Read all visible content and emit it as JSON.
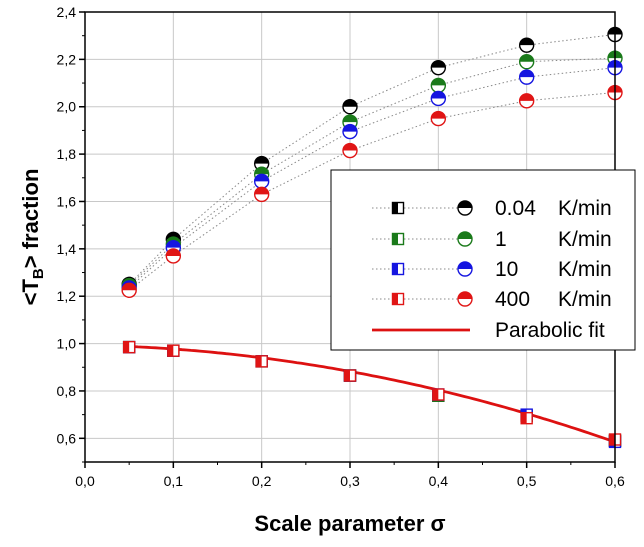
{
  "chart_data": {
    "type": "scatter",
    "xlabel": "Scale parameter σ",
    "ylabel_main": "<T",
    "ylabel_sub": "B",
    "ylabel_rest": "> fraction",
    "xlim": [
      0.0,
      0.6
    ],
    "ylim": [
      0.5,
      2.4
    ],
    "x_ticks": [
      0.0,
      0.1,
      0.2,
      0.3,
      0.4,
      0.5,
      0.6
    ],
    "x_tick_labels": [
      "0,0",
      "0,1",
      "0,2",
      "0,3",
      "0,4",
      "0,5",
      "0,6"
    ],
    "y_ticks": [
      0.6,
      0.8,
      1.0,
      1.2,
      1.4,
      1.6,
      1.8,
      2.0,
      2.2,
      2.4
    ],
    "y_tick_labels": [
      "0,6",
      "0,8",
      "1,0",
      "1,2",
      "1,4",
      "1,6",
      "1,8",
      "2,0",
      "2,2",
      "2,4"
    ],
    "grid": true,
    "legend_position": "center-right",
    "x": [
      0.05,
      0.1,
      0.2,
      0.3,
      0.4,
      0.5,
      0.6
    ],
    "series": [
      {
        "name": "0.04",
        "unit": "K/min",
        "color": "#000000",
        "squares": [
          0.985,
          0.97,
          0.925,
          0.865,
          0.78,
          0.695,
          0.59
        ],
        "circles": [
          1.25,
          1.44,
          1.76,
          2.0,
          2.165,
          2.26,
          2.305
        ]
      },
      {
        "name": "1",
        "unit": "K/min",
        "color": "#1a7a1a",
        "squares": [
          0.985,
          0.97,
          0.925,
          0.865,
          0.78,
          0.695,
          0.59
        ],
        "circles": [
          1.245,
          1.42,
          1.715,
          1.935,
          2.09,
          2.19,
          2.205
        ]
      },
      {
        "name": "10",
        "unit": "K/min",
        "color": "#1515e0",
        "squares": [
          0.985,
          0.97,
          0.925,
          0.865,
          0.785,
          0.7,
          0.585
        ],
        "circles": [
          1.235,
          1.405,
          1.685,
          1.895,
          2.035,
          2.125,
          2.165
        ]
      },
      {
        "name": "400",
        "unit": "K/min",
        "color": "#e01515",
        "squares": [
          0.985,
          0.97,
          0.925,
          0.865,
          0.785,
          0.685,
          0.595
        ],
        "circles": [
          1.225,
          1.37,
          1.63,
          1.815,
          1.95,
          2.025,
          2.06
        ]
      }
    ],
    "fit": {
      "name": "Parabolic fit",
      "color": "#dd1111",
      "coefficients": [
        0.9935,
        -0.06,
        -1.036
      ]
    }
  }
}
